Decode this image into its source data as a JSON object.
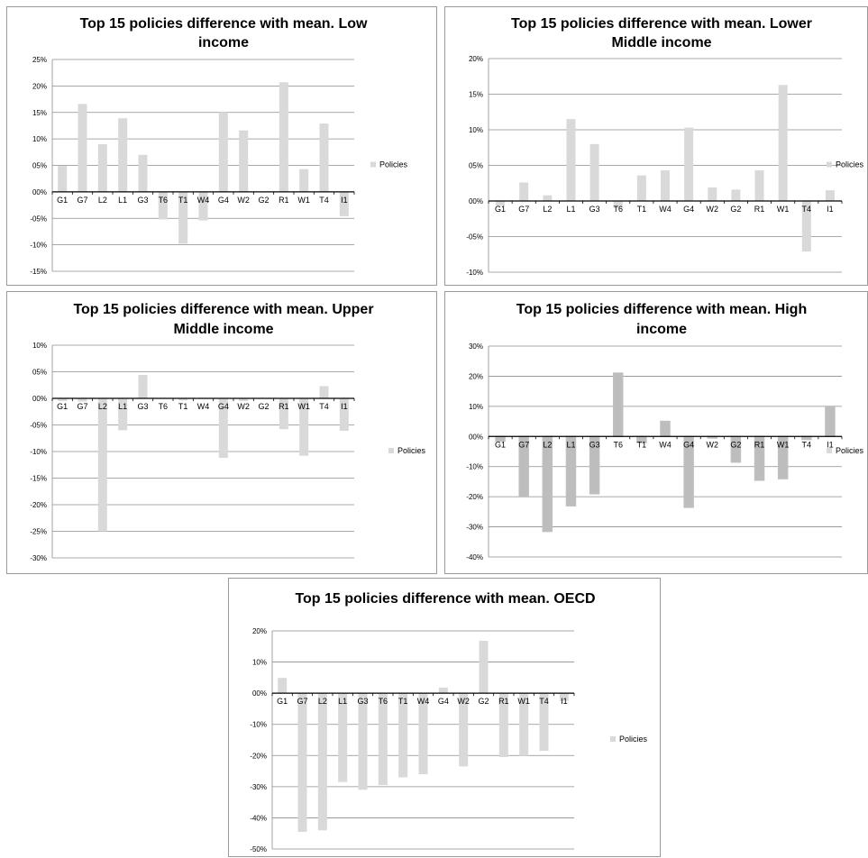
{
  "colors": {
    "bar": "#d9d9d9",
    "bar_outline": "#bfbfbf",
    "grid": "#8c8c8c",
    "axis": "#000000"
  },
  "chart_data": [
    {
      "type": "bar",
      "title_lines": [
        "Top 15 policies difference with mean. Low",
        "income"
      ],
      "categories": [
        "G1",
        "G7",
        "L2",
        "L1",
        "G3",
        "T6",
        "T1",
        "W4",
        "G4",
        "W2",
        "G2",
        "R1",
        "W1",
        "T4",
        "I1"
      ],
      "series": [
        {
          "name": "Policies",
          "values": [
            0.049,
            0.166,
            0.09,
            0.139,
            0.07,
            -0.052,
            -0.098,
            -0.054,
            0.15,
            0.116,
            0.0,
            0.207,
            0.043,
            0.129,
            -0.046
          ]
        }
      ],
      "ylim": [
        -0.15,
        0.25
      ],
      "yticks": [
        -0.15,
        -0.1,
        -0.05,
        0,
        0.05,
        0.1,
        0.15,
        0.2,
        0.25
      ],
      "ytick_labels": [
        "-15%",
        "-10%",
        "-05%",
        "00%",
        "05%",
        "10%",
        "15%",
        "20%",
        "25%"
      ],
      "grid": true,
      "legend": "right",
      "outlined": false
    },
    {
      "type": "bar",
      "title_lines": [
        "Top 15 policies difference with mean. Lower",
        "Middle income"
      ],
      "categories": [
        "G1",
        "G7",
        "L2",
        "L1",
        "G3",
        "T6",
        "T1",
        "W4",
        "G4",
        "W2",
        "G2",
        "R1",
        "W1",
        "T4",
        "I1"
      ],
      "series": [
        {
          "name": "Policies",
          "values": [
            -0.007,
            0.026,
            0.008,
            0.115,
            0.08,
            -0.01,
            0.036,
            0.043,
            0.103,
            0.019,
            0.016,
            0.043,
            0.163,
            -0.071,
            0.015
          ]
        }
      ],
      "ylim": [
        -0.1,
        0.2
      ],
      "yticks": [
        -0.1,
        -0.05,
        0,
        0.05,
        0.1,
        0.15,
        0.2
      ],
      "ytick_labels": [
        "-10%",
        "-05%",
        "00%",
        "05%",
        "10%",
        "15%",
        "20%"
      ],
      "grid": true,
      "legend": "right",
      "outlined": false
    },
    {
      "type": "bar",
      "title_lines": [
        "Top 15 policies difference with mean. Upper",
        "Middle income"
      ],
      "categories": [
        "G1",
        "G7",
        "L2",
        "L1",
        "G3",
        "T6",
        "T1",
        "W4",
        "G4",
        "W2",
        "G2",
        "R1",
        "W1",
        "T4",
        "I1"
      ],
      "series": [
        {
          "name": "Policies",
          "values": [
            -0.005,
            -0.006,
            -0.25,
            -0.06,
            0.044,
            0.0,
            -0.004,
            0.0,
            -0.112,
            -0.005,
            0.0,
            -0.058,
            -0.108,
            0.023,
            -0.061
          ]
        }
      ],
      "ylim": [
        -0.3,
        0.1
      ],
      "yticks": [
        -0.3,
        -0.25,
        -0.2,
        -0.15,
        -0.1,
        -0.05,
        0,
        0.05,
        0.1
      ],
      "ytick_labels": [
        "-30%",
        "-25%",
        "-20%",
        "-15%",
        "-10%",
        "-05%",
        "00%",
        "05%",
        "10%"
      ],
      "grid": true,
      "legend": "right",
      "outlined": false
    },
    {
      "type": "bar",
      "title_lines": [
        "Top 15 policies difference with mean. High",
        "income"
      ],
      "categories": [
        "G1",
        "G7",
        "L2",
        "L1",
        "G3",
        "T6",
        "T1",
        "W4",
        "G4",
        "W2",
        "G2",
        "R1",
        "W1",
        "T4",
        "I1"
      ],
      "series": [
        {
          "name": "Policies",
          "values": [
            -0.015,
            -0.2,
            -0.315,
            -0.23,
            -0.19,
            0.21,
            -0.02,
            0.05,
            -0.235,
            -0.005,
            -0.085,
            -0.145,
            -0.14,
            -0.01,
            0.1
          ]
        }
      ],
      "ylim": [
        -0.4,
        0.3
      ],
      "yticks": [
        -0.4,
        -0.3,
        -0.2,
        -0.1,
        0,
        0.1,
        0.2,
        0.3
      ],
      "ytick_labels": [
        "-40%",
        "-30%",
        "-20%",
        "-10%",
        "00%",
        "10%",
        "20%",
        "30%"
      ],
      "grid": true,
      "legend": "right",
      "outlined": true
    },
    {
      "type": "bar",
      "title_lines": [
        "Top 15 policies difference with mean. OECD"
      ],
      "categories": [
        "G1",
        "G7",
        "L2",
        "L1",
        "G3",
        "T6",
        "T1",
        "W4",
        "G4",
        "W2",
        "G2",
        "R1",
        "W1",
        "T4",
        "I1"
      ],
      "series": [
        {
          "name": "Policies",
          "values": [
            0.049,
            -0.445,
            -0.44,
            -0.285,
            -0.31,
            -0.295,
            -0.27,
            -0.26,
            0.018,
            -0.235,
            0.168,
            -0.205,
            -0.2,
            -0.185,
            -0.025
          ]
        }
      ],
      "ylim": [
        -0.5,
        0.2
      ],
      "yticks": [
        -0.5,
        -0.4,
        -0.3,
        -0.2,
        -0.1,
        0,
        0.1,
        0.2
      ],
      "ytick_labels": [
        "-50%",
        "-40%",
        "-30%",
        "-20%",
        "-10%",
        "00%",
        "10%",
        "20%"
      ],
      "grid": true,
      "legend": "right",
      "outlined": false
    }
  ]
}
